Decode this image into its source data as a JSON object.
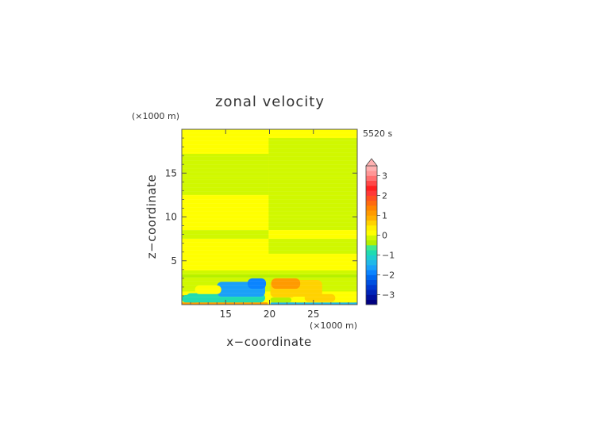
{
  "chart_data": {
    "type": "heatmap",
    "title": "zonal velocity",
    "xlabel": "x−coordinate",
    "ylabel": "z−coordinate",
    "x_unit": "(×1000 m)",
    "y_unit": "(×1000 m)",
    "time_label": "5520 s",
    "xlim": [
      10,
      30
    ],
    "ylim": [
      0,
      20
    ],
    "x_ticks": [
      "15",
      "20",
      "25"
    ],
    "y_ticks": [
      "5",
      "10",
      "15"
    ],
    "colorbar": {
      "levels": [
        -3.5,
        -3.25,
        -3.0,
        -2.75,
        -2.5,
        -2.25,
        -2.0,
        -1.75,
        -1.5,
        -1.25,
        -1.0,
        -0.75,
        -0.5,
        -0.25,
        0,
        0.25,
        0.5,
        0.75,
        1.0,
        1.25,
        1.5,
        1.75,
        2.0,
        2.25,
        2.5,
        2.75,
        3.0,
        3.25,
        3.5
      ],
      "tick_labels": [
        "3",
        "2",
        "1",
        "0",
        "−1",
        "−2",
        "−3"
      ],
      "tick_values": [
        3,
        2,
        1,
        0,
        -1,
        -2,
        -3
      ],
      "extend": "max",
      "colors": [
        "#000080",
        "#00109c",
        "#0024b8",
        "#0038d0",
        "#0050e0",
        "#0068f0",
        "#0a84ff",
        "#1aa0f8",
        "#20b8e8",
        "#20ccd0",
        "#20dcb0",
        "#40e890",
        "#b4f000",
        "#d0f800",
        "#ffff00",
        "#fff000",
        "#ffd200",
        "#ffb000",
        "#ff9a00",
        "#ff8400",
        "#ff6a10",
        "#ff5020",
        "#ff3838",
        "#ff2020",
        "#ff4848",
        "#ff7070",
        "#ff9696",
        "#ffb0b0"
      ]
    },
    "bands": [
      {
        "z": [
          19.0,
          20.0
        ],
        "left": 0.2,
        "right": 0.2
      },
      {
        "z": [
          17.2,
          19.0
        ],
        "left": 0.05,
        "right": -0.1
      },
      {
        "z": [
          14.5,
          17.2
        ],
        "left": -0.1,
        "right": -0.1
      },
      {
        "z": [
          12.5,
          14.5
        ],
        "left": -0.1,
        "right": -0.1
      },
      {
        "z": [
          10.2,
          12.5
        ],
        "left": 0.05,
        "right": -0.1
      },
      {
        "z": [
          8.5,
          10.2
        ],
        "left": 0.05,
        "right": -0.1
      },
      {
        "z": [
          7.5,
          8.5
        ],
        "left": -0.1,
        "right": 0.05
      },
      {
        "z": [
          5.8,
          7.5
        ],
        "left": 0.05,
        "right": -0.1
      },
      {
        "z": [
          3.9,
          5.8
        ],
        "left": 0.05,
        "right": 0.05
      },
      {
        "z": [
          3.2,
          3.9
        ],
        "left": -0.1,
        "right": -0.1
      },
      {
        "z": [
          1.5,
          3.2
        ],
        "left": -0.1,
        "right": -0.1
      }
    ],
    "features": [
      {
        "x0": 10.0,
        "x1": 19.8,
        "z0": 0.0,
        "z1": 0.25,
        "value": 1.2
      },
      {
        "x0": 20.1,
        "x1": 30.0,
        "z0": 0.0,
        "z1": 0.25,
        "value": -1.5
      },
      {
        "x0": 10.0,
        "x1": 12.0,
        "z0": 0.25,
        "z1": 1.1,
        "value": -0.8
      },
      {
        "x0": 10.5,
        "x1": 19.5,
        "z0": 0.25,
        "z1": 1.3,
        "value": -0.8
      },
      {
        "x0": 14.0,
        "x1": 19.5,
        "z0": 0.9,
        "z1": 2.6,
        "value": -1.6
      },
      {
        "x0": 17.5,
        "x1": 19.6,
        "z0": 1.8,
        "z1": 3.0,
        "value": -1.8
      },
      {
        "x0": 11.5,
        "x1": 14.5,
        "z0": 1.2,
        "z1": 2.2,
        "value": 0.05
      },
      {
        "x0": 20.1,
        "x1": 26.0,
        "z0": 0.8,
        "z1": 2.8,
        "value": 0.7
      },
      {
        "x0": 20.2,
        "x1": 23.5,
        "z0": 1.8,
        "z1": 3.0,
        "value": 1.1
      },
      {
        "x0": 22.5,
        "x1": 30.0,
        "z0": 0.25,
        "z1": 0.9,
        "value": 0.0
      },
      {
        "x0": 24.0,
        "x1": 27.5,
        "z0": 0.3,
        "z1": 1.2,
        "value": 0.6
      },
      {
        "x0": 20.1,
        "x1": 22.5,
        "z0": 0.25,
        "z1": 0.8,
        "value": -0.5
      },
      {
        "x0": 10.0,
        "x1": 30.0,
        "z0": 3.1,
        "z1": 3.4,
        "value": -0.3
      }
    ]
  }
}
